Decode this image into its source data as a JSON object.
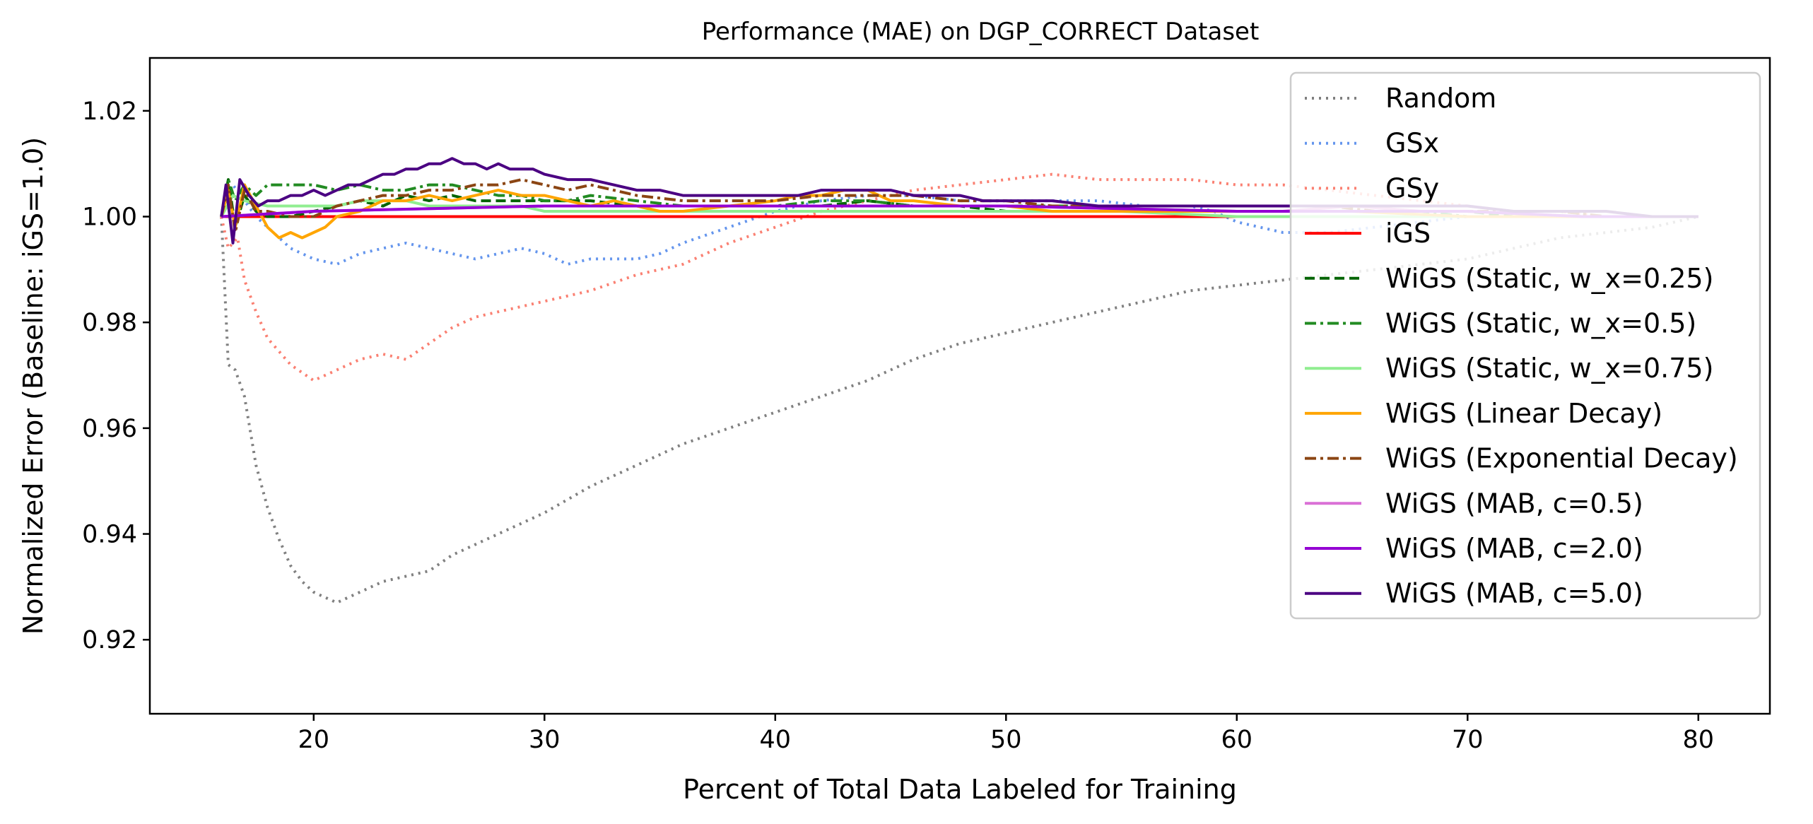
{
  "chart_data": {
    "type": "line",
    "title": "Performance (MAE) on DGP_CORRECT Dataset",
    "xlabel": "Percent of Total Data Labeled for Training",
    "ylabel": "Normalized Error (Baseline: iGS=1.0)",
    "xlim": [
      12.9,
      83.1
    ],
    "ylim": [
      0.906,
      1.03
    ],
    "xticks": [
      20,
      30,
      40,
      50,
      60,
      70,
      80
    ],
    "yticks": [
      0.92,
      0.94,
      0.96,
      0.98,
      1.0,
      1.02
    ],
    "xtick_labels": [
      "20",
      "30",
      "40",
      "50",
      "60",
      "70",
      "80"
    ],
    "ytick_labels": [
      "0.92",
      "0.94",
      "0.96",
      "0.98",
      "1.00",
      "1.02"
    ],
    "grid": false,
    "legend_position": "upper right",
    "series": [
      {
        "name": "Random",
        "color": "#808080",
        "style": "dotted",
        "x": [
          16,
          16.3,
          16.6,
          17,
          17.5,
          18,
          18.5,
          19,
          19.5,
          20,
          20.5,
          21,
          22,
          23,
          24,
          25,
          26,
          27,
          28,
          29,
          30,
          32,
          34,
          36,
          38,
          40,
          42,
          44,
          46,
          48,
          50,
          52,
          54,
          56,
          58,
          60,
          62,
          64,
          66,
          68,
          70,
          72,
          74,
          76,
          78,
          80
        ],
        "y": [
          1.0,
          0.972,
          0.971,
          0.966,
          0.953,
          0.945,
          0.939,
          0.934,
          0.931,
          0.929,
          0.928,
          0.927,
          0.929,
          0.931,
          0.932,
          0.933,
          0.936,
          0.938,
          0.94,
          0.942,
          0.944,
          0.949,
          0.953,
          0.957,
          0.96,
          0.963,
          0.966,
          0.969,
          0.973,
          0.976,
          0.978,
          0.98,
          0.982,
          0.984,
          0.986,
          0.987,
          0.988,
          0.989,
          0.99,
          0.991,
          0.992,
          0.994,
          0.996,
          0.997,
          0.998,
          1.0
        ]
      },
      {
        "name": "GSx",
        "color": "#6495ED",
        "style": "dotted",
        "x": [
          16,
          16.5,
          17,
          17.5,
          18,
          19,
          20,
          21,
          22,
          23,
          24,
          25,
          26,
          27,
          28,
          29,
          30,
          31,
          32,
          33,
          34,
          35,
          36,
          38,
          40,
          42,
          44,
          46,
          48,
          50,
          52,
          54,
          56,
          58,
          59,
          60,
          62,
          64,
          66,
          68,
          70,
          72,
          75,
          80
        ],
        "y": [
          1.0,
          1.006,
          1.003,
          1.0,
          0.998,
          0.994,
          0.992,
          0.991,
          0.993,
          0.994,
          0.995,
          0.994,
          0.993,
          0.992,
          0.993,
          0.994,
          0.993,
          0.991,
          0.992,
          0.992,
          0.992,
          0.993,
          0.995,
          0.998,
          1.001,
          1.003,
          1.004,
          1.004,
          1.003,
          1.003,
          1.003,
          1.003,
          1.002,
          1.002,
          1.001,
          0.999,
          0.997,
          0.997,
          0.998,
          0.999,
          1.0,
          1.0,
          1.0,
          1.0
        ]
      },
      {
        "name": "GSy",
        "color": "#FA8072",
        "style": "dotted",
        "x": [
          16,
          16.3,
          16.7,
          17,
          17.5,
          18,
          19,
          20,
          21,
          22,
          23,
          24,
          25,
          26,
          27,
          28,
          30,
          32,
          34,
          36,
          38,
          40,
          42,
          44,
          46,
          48,
          50,
          52,
          54,
          56,
          58,
          60,
          62,
          64,
          66,
          68,
          70,
          72,
          74,
          76,
          78,
          80
        ],
        "y": [
          1.0,
          0.994,
          0.996,
          0.988,
          0.982,
          0.977,
          0.972,
          0.969,
          0.971,
          0.973,
          0.974,
          0.973,
          0.976,
          0.979,
          0.981,
          0.982,
          0.984,
          0.986,
          0.989,
          0.991,
          0.995,
          0.998,
          1.001,
          1.003,
          1.005,
          1.006,
          1.007,
          1.008,
          1.007,
          1.007,
          1.007,
          1.006,
          1.006,
          1.005,
          1.004,
          1.003,
          1.002,
          1.001,
          1.001,
          1.0,
          1.0,
          1.0
        ]
      },
      {
        "name": "iGS",
        "color": "#FF0000",
        "style": "solid",
        "x": [
          16,
          80
        ],
        "y": [
          1.0,
          1.0
        ]
      },
      {
        "name": "WiGS (Static, w_x=0.25)",
        "color": "#006400",
        "style": "dashed",
        "x": [
          16,
          16.3,
          16.6,
          17,
          17.5,
          18,
          19,
          20,
          21,
          22,
          23,
          24,
          25,
          26,
          27,
          28,
          29,
          30,
          32,
          34,
          36,
          38,
          40,
          42,
          44,
          46,
          48,
          50,
          52,
          54,
          56,
          58,
          60,
          62,
          64,
          66,
          68,
          70,
          72,
          74,
          76,
          78,
          80
        ],
        "y": [
          1.0,
          1.007,
          0.998,
          1.004,
          1.001,
          1.0,
          1.0,
          1.001,
          1.002,
          1.003,
          1.002,
          1.004,
          1.003,
          1.004,
          1.003,
          1.003,
          1.003,
          1.003,
          1.003,
          1.002,
          1.002,
          1.002,
          1.002,
          1.002,
          1.003,
          1.002,
          1.002,
          1.001,
          1.001,
          1.001,
          1.001,
          1.001,
          1.001,
          1.001,
          1.001,
          1.001,
          1.001,
          1.001,
          1.0,
          1.0,
          1.0,
          1.0,
          1.0
        ]
      },
      {
        "name": "WiGS (Static, w_x=0.5)",
        "color": "#228B22",
        "style": "dashdot",
        "x": [
          16,
          16.3,
          16.6,
          17,
          17.5,
          18,
          19,
          20,
          21,
          22,
          23,
          24,
          25,
          26,
          27,
          28,
          29,
          30,
          31,
          32,
          34,
          36,
          38,
          40,
          42,
          44,
          46,
          48,
          50,
          52,
          54,
          56,
          58,
          60,
          62,
          64,
          66,
          68,
          70,
          72,
          74,
          76,
          78,
          80
        ],
        "y": [
          1.0,
          1.007,
          1.003,
          1.006,
          1.004,
          1.006,
          1.006,
          1.006,
          1.005,
          1.006,
          1.005,
          1.005,
          1.006,
          1.006,
          1.005,
          1.004,
          1.004,
          1.003,
          1.003,
          1.004,
          1.003,
          1.002,
          1.002,
          1.002,
          1.003,
          1.003,
          1.002,
          1.002,
          1.002,
          1.002,
          1.002,
          1.001,
          1.001,
          1.001,
          1.001,
          1.001,
          1.001,
          1.001,
          1.0,
          1.0,
          1.0,
          1.0,
          1.0,
          1.0
        ]
      },
      {
        "name": "WiGS (Static, w_x=0.75)",
        "color": "#90EE90",
        "style": "solid",
        "x": [
          16,
          16.5,
          17,
          18,
          19,
          20,
          21,
          22,
          23,
          24,
          25,
          26,
          27,
          28,
          29,
          30,
          32,
          34,
          36,
          38,
          40,
          42,
          44,
          46,
          48,
          50,
          55,
          60,
          65,
          70,
          75,
          80
        ],
        "y": [
          1.0,
          1.004,
          1.003,
          1.002,
          1.002,
          1.002,
          1.002,
          1.003,
          1.003,
          1.003,
          1.002,
          1.002,
          1.002,
          1.002,
          1.002,
          1.001,
          1.001,
          1.001,
          1.001,
          1.001,
          1.001,
          1.001,
          1.001,
          1.001,
          1.001,
          1.001,
          1.001,
          1.0,
          1.0,
          1.0,
          1.0,
          1.0
        ]
      },
      {
        "name": "WiGS (Linear Decay)",
        "color": "#FFA500",
        "style": "solid",
        "x": [
          16,
          16.3,
          16.6,
          17,
          17.5,
          18,
          18.5,
          19,
          19.5,
          20,
          20.5,
          21,
          22,
          23,
          24,
          25,
          26,
          27,
          28,
          29,
          30,
          31,
          32,
          33,
          34,
          35,
          36,
          38,
          40,
          41,
          42,
          43,
          44,
          45,
          46,
          48,
          50,
          52,
          55,
          60,
          65,
          70,
          75,
          80
        ],
        "y": [
          1.0,
          1.005,
          0.998,
          1.006,
          1.002,
          0.998,
          0.996,
          0.997,
          0.996,
          0.997,
          0.998,
          1.0,
          1.001,
          1.003,
          1.003,
          1.004,
          1.003,
          1.004,
          1.005,
          1.004,
          1.004,
          1.003,
          1.002,
          1.003,
          1.002,
          1.001,
          1.001,
          1.002,
          1.003,
          1.004,
          1.004,
          1.005,
          1.005,
          1.003,
          1.003,
          1.002,
          1.002,
          1.001,
          1.001,
          1.001,
          1.001,
          1.0,
          1.0,
          1.0
        ]
      },
      {
        "name": "WiGS (Exponential Decay)",
        "color": "#8B4513",
        "style": "dashdot",
        "x": [
          16,
          16.3,
          16.6,
          17,
          17.5,
          18,
          19,
          20,
          21,
          22,
          23,
          24,
          25,
          26,
          27,
          28,
          29,
          30,
          31,
          32,
          33,
          34,
          36,
          38,
          40,
          42,
          44,
          46,
          48,
          50,
          52,
          54,
          56,
          58,
          60,
          62,
          64,
          66,
          68,
          70,
          72,
          74,
          76,
          78,
          80
        ],
        "y": [
          1.0,
          1.006,
          0.997,
          1.005,
          1.001,
          1.001,
          1.0,
          1.0,
          1.002,
          1.003,
          1.004,
          1.004,
          1.005,
          1.005,
          1.006,
          1.006,
          1.007,
          1.006,
          1.005,
          1.006,
          1.005,
          1.004,
          1.003,
          1.003,
          1.003,
          1.004,
          1.004,
          1.004,
          1.003,
          1.003,
          1.002,
          1.002,
          1.002,
          1.002,
          1.002,
          1.002,
          1.002,
          1.001,
          1.001,
          1.001,
          1.001,
          1.001,
          1.0,
          1.0,
          1.0
        ]
      },
      {
        "name": "WiGS (MAB, c=0.5)",
        "color": "#DA70D6",
        "style": "solid",
        "x": [
          16,
          20,
          30,
          40,
          50,
          60,
          62,
          65,
          68,
          70,
          75,
          80
        ],
        "y": [
          1.0,
          1.001,
          1.002,
          1.002,
          1.002,
          1.001,
          1.001,
          1.002,
          1.001,
          1.001,
          1.0,
          1.0
        ]
      },
      {
        "name": "WiGS (MAB, c=2.0)",
        "color": "#9400D3",
        "style": "solid",
        "x": [
          16,
          20,
          30,
          40,
          50,
          60,
          65,
          70,
          75,
          80
        ],
        "y": [
          1.0,
          1.001,
          1.002,
          1.002,
          1.002,
          1.001,
          1.001,
          1.001,
          1.0,
          1.0
        ]
      },
      {
        "name": "WiGS (MAB, c=5.0)",
        "color": "#4B0082",
        "style": "solid",
        "x": [
          16,
          16.2,
          16.5,
          16.8,
          17.2,
          17.6,
          18,
          18.5,
          19,
          19.5,
          20,
          20.5,
          21,
          21.5,
          22,
          22.5,
          23,
          23.5,
          24,
          24.5,
          25,
          25.5,
          26,
          26.5,
          27,
          27.5,
          28,
          28.5,
          29,
          29.5,
          30,
          31,
          32,
          33,
          34,
          35,
          36,
          37,
          38,
          39,
          40,
          41,
          42,
          43,
          44,
          45,
          46,
          47,
          48,
          49,
          50,
          52,
          54,
          56,
          58,
          60,
          62,
          64,
          66,
          68,
          70,
          72,
          74,
          76,
          78,
          80
        ],
        "y": [
          1.0,
          1.006,
          0.995,
          1.007,
          1.004,
          1.002,
          1.003,
          1.003,
          1.004,
          1.004,
          1.005,
          1.004,
          1.005,
          1.006,
          1.006,
          1.007,
          1.008,
          1.008,
          1.009,
          1.009,
          1.01,
          1.01,
          1.011,
          1.01,
          1.01,
          1.009,
          1.01,
          1.009,
          1.009,
          1.009,
          1.008,
          1.007,
          1.007,
          1.006,
          1.005,
          1.005,
          1.004,
          1.004,
          1.004,
          1.004,
          1.004,
          1.004,
          1.005,
          1.005,
          1.005,
          1.005,
          1.004,
          1.004,
          1.004,
          1.003,
          1.003,
          1.003,
          1.002,
          1.002,
          1.002,
          1.002,
          1.002,
          1.002,
          1.002,
          1.002,
          1.002,
          1.001,
          1.001,
          1.001,
          1.0,
          1.0
        ]
      }
    ]
  }
}
